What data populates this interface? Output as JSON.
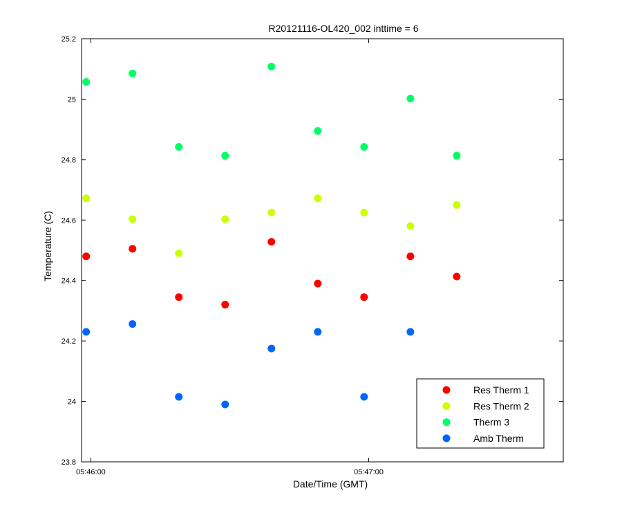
{
  "chart_data": {
    "type": "scatter",
    "title": "R20121116-OL420_002 inttime = 6",
    "xlabel": "Date/Time (GMT)",
    "ylabel": "Temperature (C)",
    "x_axis_type": "time",
    "xlim": [
      "05:45:58",
      "05:47:42"
    ],
    "ylim": [
      23.8,
      25.2
    ],
    "x_ticks": [
      "05:46:00",
      "05:47:00"
    ],
    "y_ticks": [
      23.8,
      24,
      24.2,
      24.4,
      24.6,
      24.8,
      25,
      25.2
    ],
    "y_tick_labels": [
      "23.8",
      "24",
      "24.2",
      "24.4",
      "24.6",
      "24.8",
      "25",
      "25.2"
    ],
    "grid": false,
    "legend_position": "bottom-right",
    "x": [
      "05:45:59",
      "05:46:09",
      "05:46:19",
      "05:46:29",
      "05:46:39",
      "05:46:49",
      "05:46:59",
      "05:47:09",
      "05:47:19"
    ],
    "series": [
      {
        "name": "Res Therm 1",
        "color": "#ff0000",
        "values": [
          24.48,
          24.505,
          24.345,
          24.32,
          24.528,
          24.39,
          24.345,
          24.48,
          24.413
        ]
      },
      {
        "name": "Res Therm 2",
        "color": "#ccff00",
        "values": [
          24.672,
          24.603,
          24.49,
          24.603,
          24.625,
          24.672,
          24.625,
          24.58,
          24.65
        ]
      },
      {
        "name": "Therm 3",
        "color": "#00ff66",
        "values": [
          25.057,
          25.085,
          24.842,
          24.813,
          25.108,
          24.895,
          24.842,
          25.002,
          24.813
        ]
      },
      {
        "name": "Amb Therm",
        "color": "#0066ff",
        "values": [
          24.23,
          24.256,
          24.015,
          23.99,
          24.175,
          24.23,
          24.015,
          24.23,
          null
        ]
      }
    ]
  }
}
